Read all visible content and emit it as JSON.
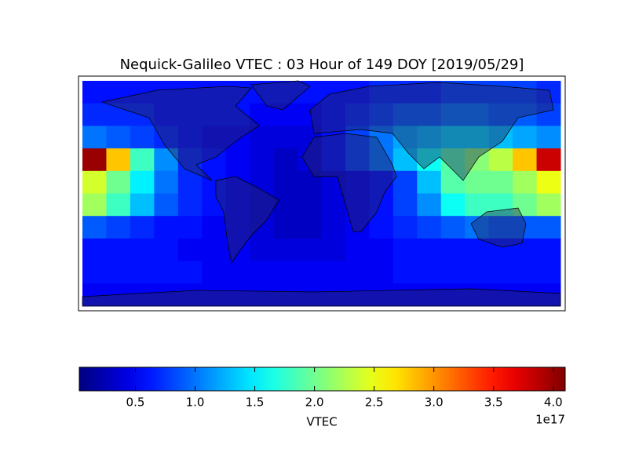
{
  "chart_data": {
    "type": "heatmap",
    "title": "Nequick-Galileo VTEC : 03 Hour of 149 DOY [2019/05/29]",
    "colormap": "jet",
    "colorbar": {
      "label": "VTEC",
      "offset_label": "1e17",
      "lim": [
        0.03,
        4.1
      ],
      "ticks": [
        0.5,
        {
          "value": 1,
          "label": "1.0"
        },
        1.5,
        {
          "value": 2,
          "label": "2.0"
        },
        2.5,
        {
          "value": 3,
          "label": "3.0"
        },
        3.5,
        {
          "value": 4,
          "label": "4.0"
        }
      ]
    },
    "values": [
      [
        0.6,
        0.6,
        0.6,
        0.6,
        0.6,
        0.6,
        0.6,
        0.6,
        0.6,
        0.6,
        0.6,
        0.6,
        0.7,
        0.7,
        0.7,
        0.8,
        0.8,
        0.8,
        0.8,
        0.7
      ],
      [
        0.7,
        0.7,
        0.7,
        0.6,
        0.6,
        0.6,
        0.6,
        0.5,
        0.5,
        0.5,
        0.6,
        0.7,
        0.8,
        0.9,
        0.9,
        1.0,
        1.0,
        0.9,
        0.9,
        0.8
      ],
      [
        1.0,
        0.9,
        0.8,
        0.7,
        0.6,
        0.5,
        0.5,
        0.4,
        0.4,
        0.4,
        0.6,
        0.8,
        1.0,
        1.2,
        1.3,
        1.4,
        1.4,
        1.3,
        1.2,
        1.1
      ],
      [
        4.0,
        2.8,
        1.8,
        1.1,
        0.7,
        0.6,
        0.5,
        0.4,
        0.3,
        0.4,
        0.6,
        0.8,
        1.0,
        1.3,
        1.6,
        1.9,
        2.1,
        2.3,
        2.8,
        3.8
      ],
      [
        2.4,
        2.0,
        1.5,
        1.0,
        0.7,
        0.6,
        0.5,
        0.4,
        0.3,
        0.3,
        0.4,
        0.5,
        0.6,
        0.8,
        1.3,
        1.9,
        2.0,
        2.0,
        2.2,
        2.5
      ],
      [
        2.2,
        1.8,
        1.3,
        0.9,
        0.7,
        0.6,
        0.5,
        0.4,
        0.3,
        0.3,
        0.4,
        0.5,
        0.6,
        0.8,
        1.1,
        1.6,
        1.8,
        1.8,
        2.0,
        2.2
      ],
      [
        0.9,
        0.8,
        0.7,
        0.6,
        0.6,
        0.5,
        0.5,
        0.4,
        0.3,
        0.3,
        0.4,
        0.5,
        0.6,
        0.7,
        0.8,
        0.9,
        1.0,
        0.9,
        0.9,
        0.9
      ],
      [
        0.6,
        0.6,
        0.6,
        0.6,
        0.5,
        0.5,
        0.5,
        0.4,
        0.4,
        0.4,
        0.4,
        0.5,
        0.5,
        0.6,
        0.6,
        0.6,
        0.6,
        0.6,
        0.6,
        0.6
      ],
      [
        0.6,
        0.6,
        0.6,
        0.6,
        0.6,
        0.5,
        0.5,
        0.5,
        0.5,
        0.5,
        0.5,
        0.5,
        0.5,
        0.6,
        0.6,
        0.6,
        0.6,
        0.6,
        0.6,
        0.6
      ],
      [
        0.5,
        0.5,
        0.5,
        0.5,
        0.5,
        0.5,
        0.5,
        0.5,
        0.5,
        0.5,
        0.5,
        0.5,
        0.5,
        0.5,
        0.5,
        0.5,
        0.5,
        0.5,
        0.5,
        0.5
      ]
    ]
  }
}
